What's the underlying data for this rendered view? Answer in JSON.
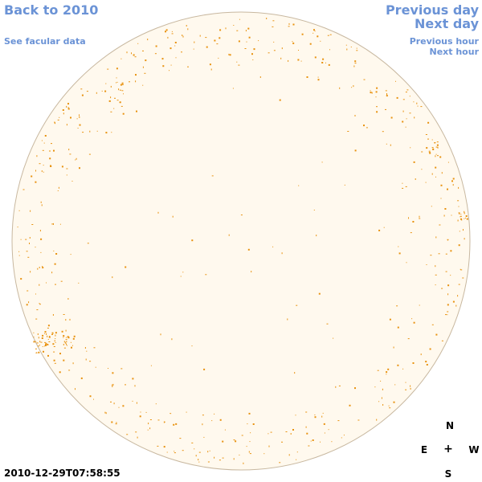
{
  "nav": {
    "back_label": "Back to 2010",
    "facular_label": "See facular data",
    "prev_day_label": "Previous day",
    "next_day_label": "Next day",
    "prev_hour_label": "Previous hour",
    "next_hour_label": "Next hour"
  },
  "timestamp": "2010-12-29T07:58:55",
  "compass": {
    "north": "N",
    "east": "E",
    "center": "+",
    "west": "W",
    "south": "S"
  },
  "colors": {
    "link": "#6b93d6",
    "disk_fill": "#fff9ee",
    "disk_outline": "#c8b8a0",
    "facula": "#e8920f"
  }
}
